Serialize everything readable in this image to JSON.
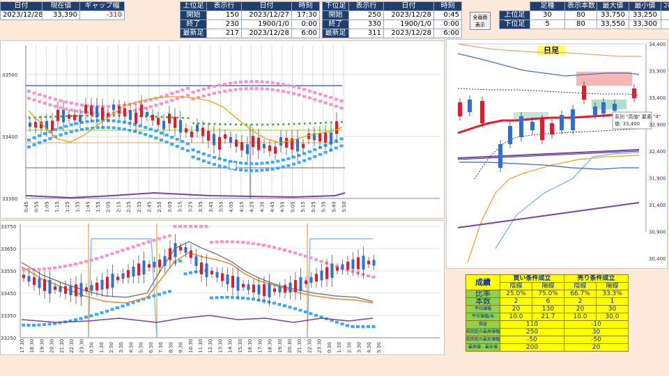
{
  "top_left": {
    "h_date": "日付",
    "h_price": "現在値",
    "h_gap": "ギャップ幅",
    "date": "2023/12/28",
    "price": "33,390",
    "gap": "-310"
  },
  "upper_tbl": {
    "h0": "上位足",
    "h1": "表示行",
    "h2": "日付",
    "h3": "時刻",
    "r1": [
      "開始",
      "150",
      "2023/12/27",
      "17:30"
    ],
    "r2": [
      "終了",
      "230",
      "1900/1/0",
      "0:00"
    ],
    "r3": [
      "最新足",
      "217",
      "2023/12/28",
      "6:00"
    ]
  },
  "lower_tbl": {
    "h0": "下位足",
    "h1": "表示行",
    "h2": "日付",
    "h3": "時刻",
    "r1": [
      "開始",
      "250",
      "2023/12/28",
      "0:45"
    ],
    "r2": [
      "終了",
      "330",
      "1900/1/0",
      "0:00"
    ],
    "r3": [
      "最新足",
      "311",
      "2023/12/28",
      "6:00"
    ]
  },
  "fullscreen_button": [
    "全画面",
    "表示"
  ],
  "right_tbl": {
    "h0": "足種",
    "h1": "表示本数",
    "h2": "最大値",
    "h3": "最小値",
    "h4": "ｺﾏ",
    "r1": [
      "上位足",
      "30",
      "80",
      "33,750",
      "33,250"
    ],
    "r2": [
      "下位足",
      "5",
      "80",
      "33,550",
      "33,300"
    ]
  },
  "chart1": {
    "y_ticks": [
      "33500",
      "33400",
      "33300"
    ],
    "x_ticks": [
      "0:45",
      "0:55",
      "1:05",
      "1:15",
      "1:25",
      "1:35",
      "1:45",
      "1:55",
      "2:05",
      "2:15",
      "2:25",
      "2:35",
      "2:45",
      "2:55",
      "3:05",
      "3:15",
      "3:25",
      "3:35",
      "3:45",
      "3:55",
      "4:05",
      "4:15",
      "4:25",
      "4:35",
      "4:45",
      "4:55",
      "5:05",
      "5:15",
      "5:25",
      "5:35",
      "5:40",
      "5:50"
    ]
  },
  "chart2": {
    "y_ticks": [
      "33750",
      "33650",
      "33550",
      "33450",
      "33350",
      "33250"
    ],
    "x_ticks": [
      "17:30",
      "18:30",
      "19:30",
      "20:30",
      "21:30",
      "22:30",
      "23:30",
      "0:30",
      "1:30",
      "2:30",
      "3:30",
      "4:30",
      "5:30",
      "6:30",
      "7:30",
      "8:30",
      "9:30",
      "10:30",
      "11:30",
      "12:30",
      "13:30",
      "14:30",
      "15:30",
      "16:30",
      "17:30",
      "18:30",
      "19:30",
      "20:30",
      "21:30",
      "22:30",
      "23:30",
      "0:30",
      "1:30",
      "2:30",
      "3:30",
      "4:30",
      "5:30"
    ]
  },
  "chart3": {
    "title": "日足",
    "y_ticks": [
      "34,400",
      "33,900",
      "33,400",
      "32,900",
      "32,400",
      "31,900",
      "31,400",
      "30,900",
      "30,400"
    ],
    "tooltip": [
      "系列 \"高値\" 要素 \"4\"",
      "値: 33,400"
    ]
  },
  "results": {
    "label": "成績",
    "buy": "買い条件成立",
    "sell": "売り条件成立",
    "heads": [
      "陰線",
      "陽線",
      "陰線",
      "陽線"
    ],
    "rows": [
      [
        "比率",
        "25.0%",
        "75.0%",
        "66.7%",
        "33.3%"
      ],
      [
        "本数",
        "2",
        "6",
        "2",
        "1"
      ],
      [
        "平均値幅",
        "20",
        "130",
        "20",
        "30"
      ],
      [
        "平均値幅/本",
        "10.0",
        "21.7",
        "10.0",
        "30.0"
      ]
    ],
    "rows2": [
      [
        "損益",
        "110",
        "-10"
      ],
      [
        "前回足の最高値幅",
        "250",
        "30"
      ],
      [
        "前回足の最安値幅",
        "-50",
        "-50"
      ],
      [
        "最高値 - 最安値",
        "200",
        "20"
      ]
    ]
  },
  "colors": {
    "header": "#1f3f6e",
    "pink": "#ff8fc8",
    "blue": "#33aaff",
    "green": "#33aa33",
    "red": "#e8192c",
    "purple": "#7a3fa0"
  }
}
